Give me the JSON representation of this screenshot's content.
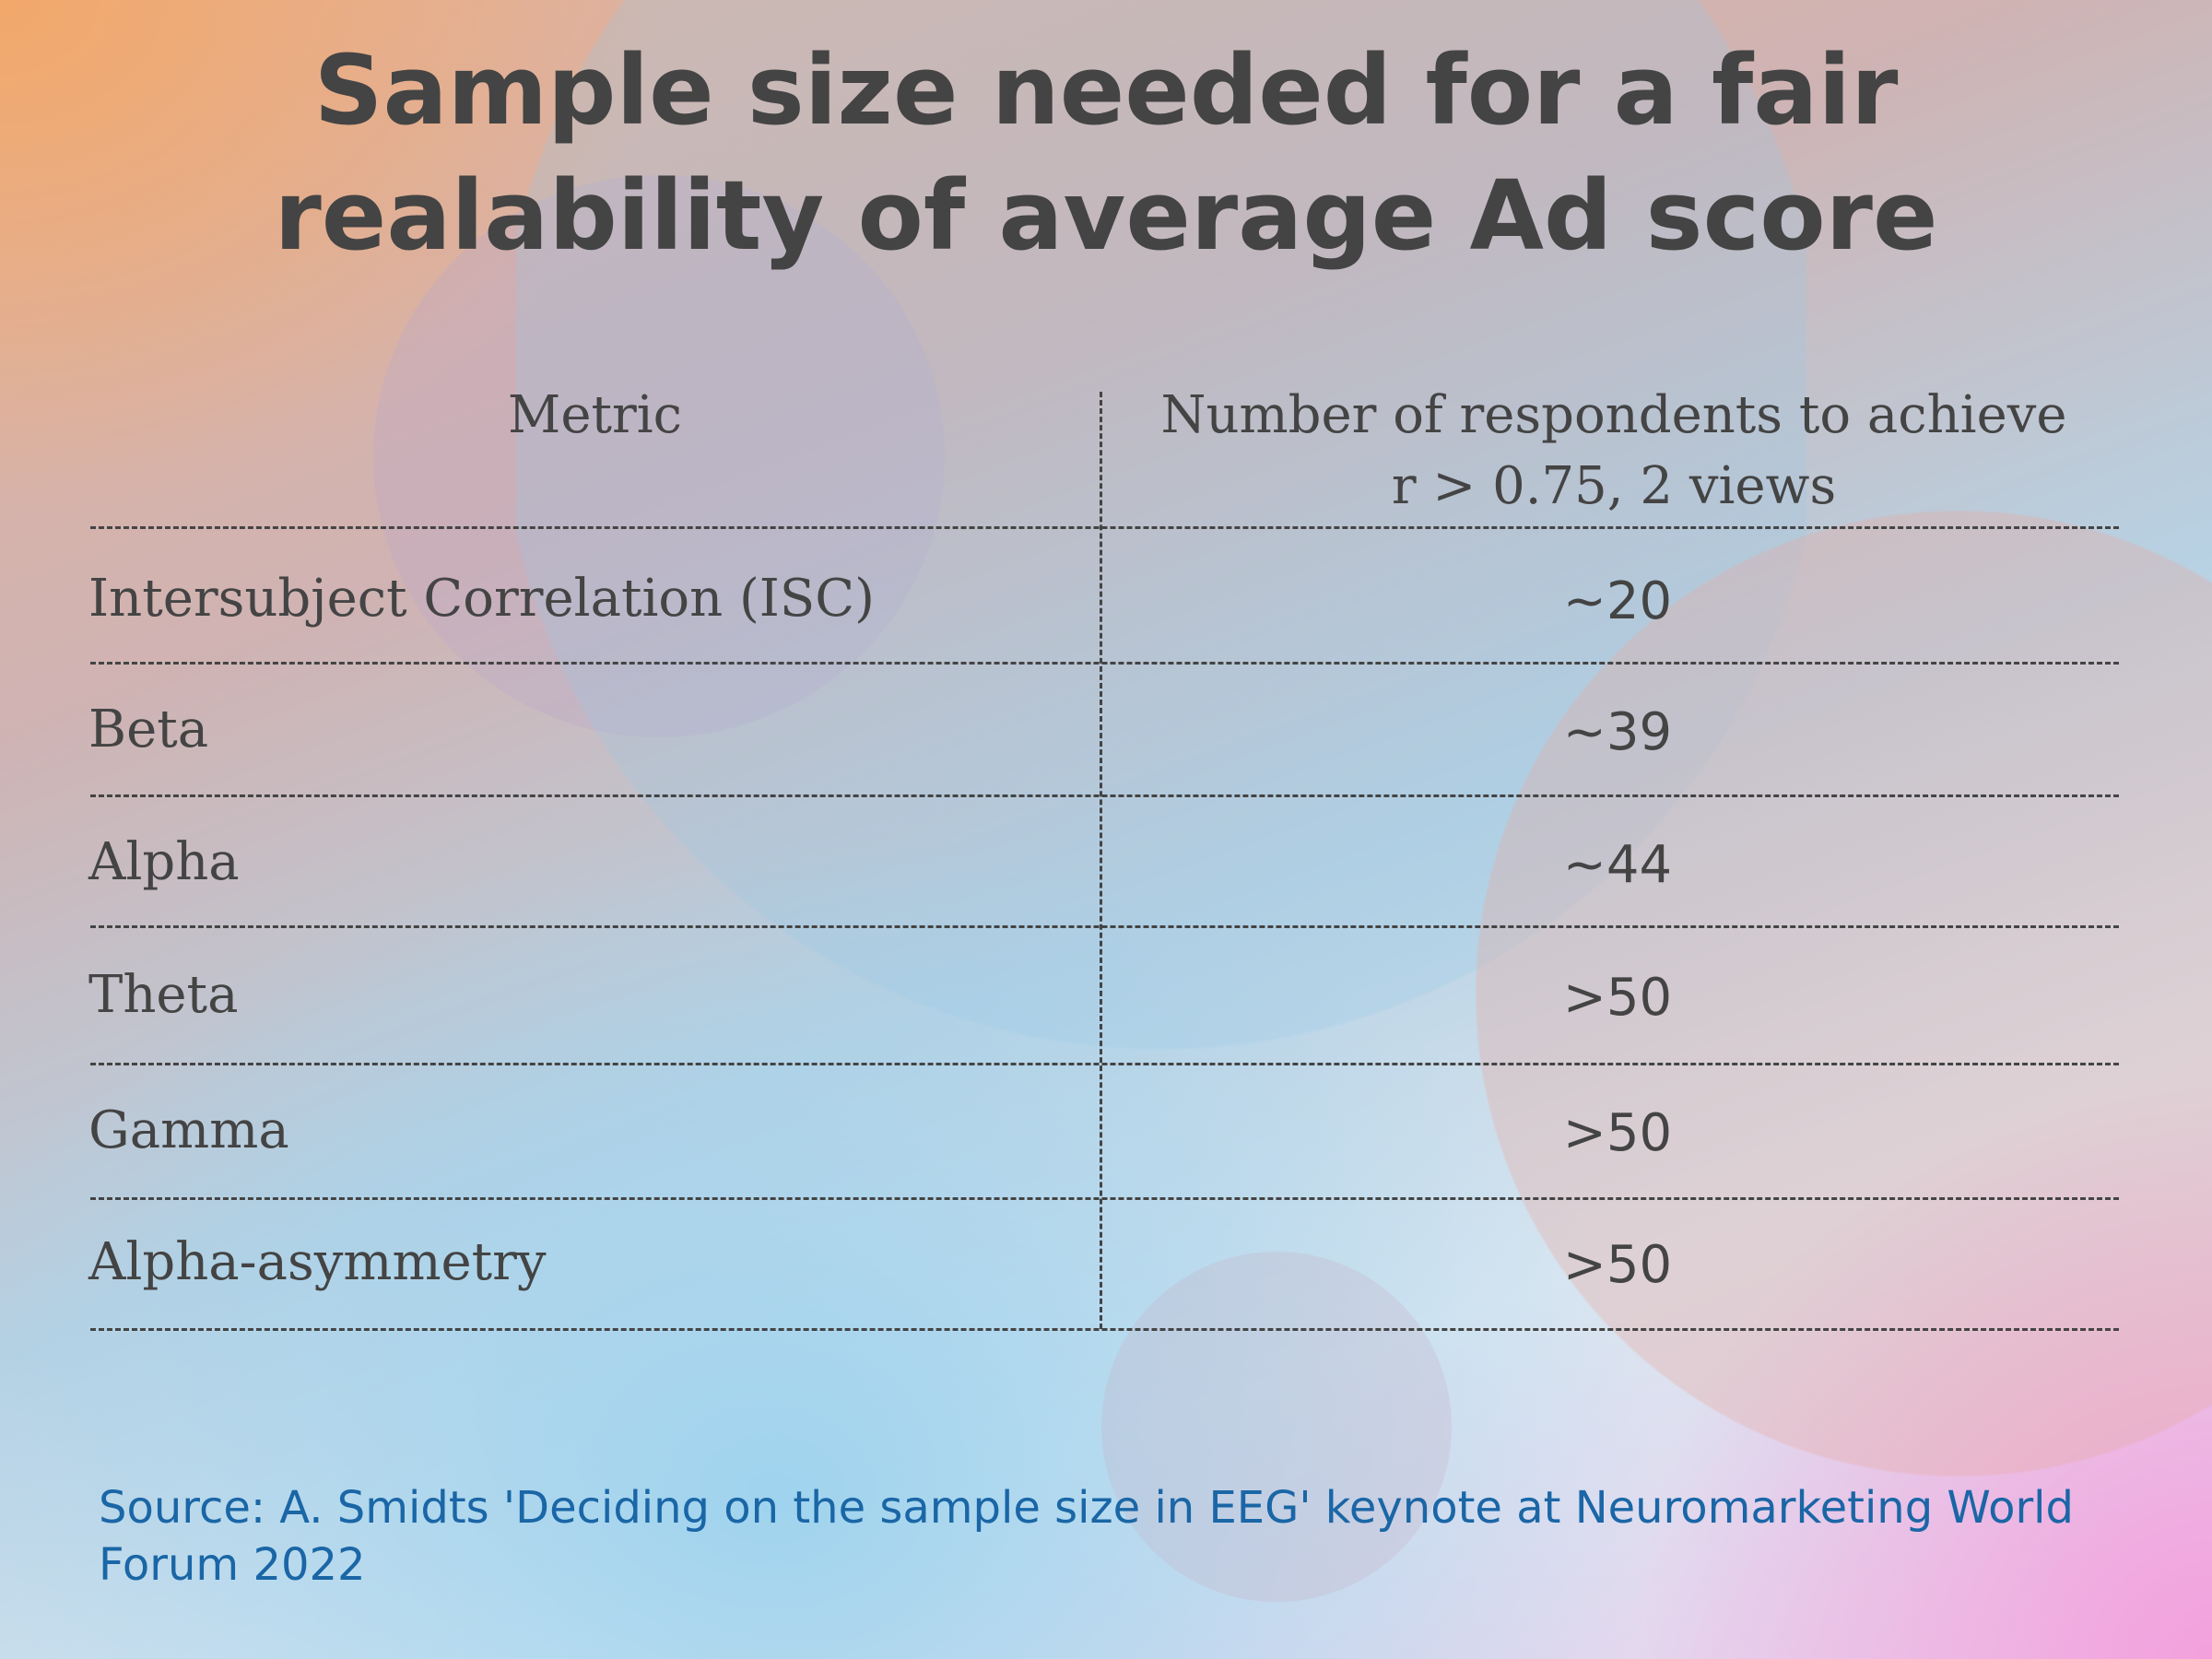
{
  "title": {
    "line1": "Sample size needed for a fair",
    "line2": "realability of average Ad score"
  },
  "table": {
    "headers": {
      "metric": "Metric",
      "value_line1": "Number of respondents to achieve",
      "value_line2": "r > 0.75, 2 views"
    },
    "rows": [
      {
        "metric": "Intersubject Correlation (ISC)",
        "value": "~20"
      },
      {
        "metric": "Beta",
        "value": "~39"
      },
      {
        "metric": "Alpha",
        "value": "~44"
      },
      {
        "metric": "Theta",
        "value": ">50"
      },
      {
        "metric": "Gamma",
        "value": ">50"
      },
      {
        "metric": "Alpha-asymmetry",
        "value": ">50"
      }
    ]
  },
  "source": "Source: A. Smidts 'Deciding on the sample size in EEG' keynote at Neuromarketing World Forum 2022",
  "colors": {
    "text": "#444444",
    "source": "#1a66a6"
  }
}
